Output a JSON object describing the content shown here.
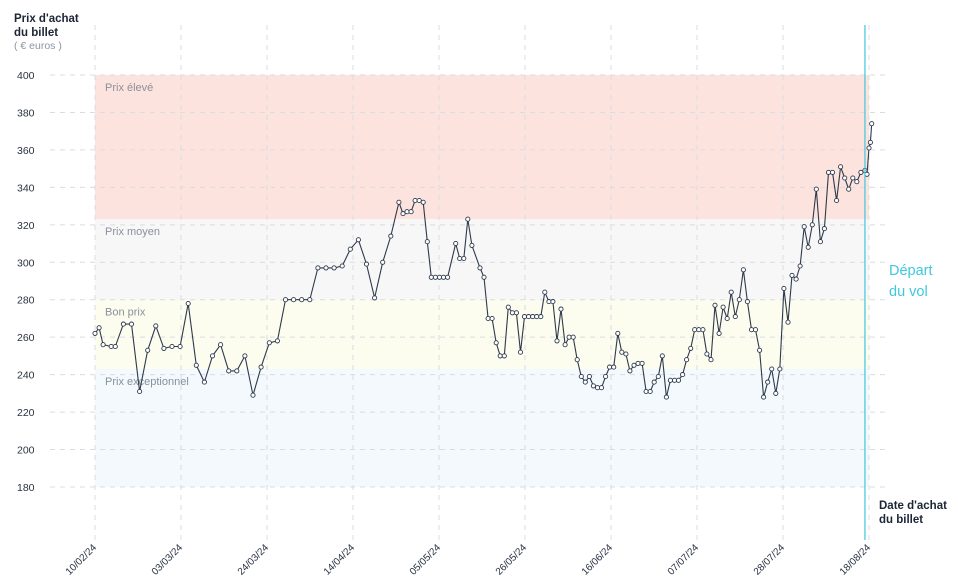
{
  "chart_data": {
    "type": "line",
    "title": "",
    "ylabel_line1": "Prix d'achat",
    "ylabel_line2": "du billet",
    "yunit": "( € euros )",
    "xlabel_line1": "Date d'achat",
    "xlabel_line2": "du billet",
    "departure_line1": "Départ",
    "departure_line2": "du vol",
    "y_ticks": [
      180,
      200,
      220,
      240,
      260,
      280,
      300,
      320,
      340,
      360,
      380,
      400
    ],
    "ylim": [
      170,
      405
    ],
    "x_ticks": [
      "10/02/24",
      "03/03/24",
      "24/03/24",
      "14/04/24",
      "05/05/24",
      "26/05/24",
      "16/06/24",
      "07/07/24",
      "28/07/24",
      "18/08/24"
    ],
    "x_start": "2024-02-10",
    "x_end": "2024-08-19",
    "departure_date": "2024-08-18",
    "zones": [
      {
        "label": "Prix élevé",
        "from": 323,
        "to": 400,
        "color": "#fde3dd"
      },
      {
        "label": "Prix moyen",
        "from": 280,
        "to": 323,
        "color": "#f7f7f8"
      },
      {
        "label": "Bon prix",
        "from": 243,
        "to": 280,
        "color": "#fcfcef"
      },
      {
        "label": "Prix exceptionnel",
        "from": 180,
        "to": 243,
        "color": "#f3f9fc"
      }
    ],
    "colors": {
      "line": "#2e3a4c",
      "departure": "#3fc7e0",
      "grid": "#d9dce1"
    },
    "grid": true,
    "series": [
      {
        "values": [
          [
            "2024-02-10",
            262
          ],
          [
            "2024-02-11",
            265
          ],
          [
            "2024-02-12",
            256
          ],
          [
            "2024-02-14",
            255
          ],
          [
            "2024-02-15",
            255
          ],
          [
            "2024-02-17",
            267
          ],
          [
            "2024-02-19",
            267
          ],
          [
            "2024-02-21",
            231
          ],
          [
            "2024-02-23",
            253
          ],
          [
            "2024-02-25",
            266
          ],
          [
            "2024-02-27",
            254
          ],
          [
            "2024-02-29",
            255
          ],
          [
            "2024-03-02",
            255
          ],
          [
            "2024-03-04",
            278
          ],
          [
            "2024-03-06",
            245
          ],
          [
            "2024-03-08",
            236
          ],
          [
            "2024-03-10",
            250
          ],
          [
            "2024-03-12",
            256
          ],
          [
            "2024-03-14",
            242
          ],
          [
            "2024-03-16",
            242
          ],
          [
            "2024-03-18",
            250
          ],
          [
            "2024-03-20",
            229
          ],
          [
            "2024-03-22",
            244
          ],
          [
            "2024-03-24",
            257
          ],
          [
            "2024-03-26",
            258
          ],
          [
            "2024-03-28",
            280
          ],
          [
            "2024-03-30",
            280
          ],
          [
            "2024-04-01",
            280
          ],
          [
            "2024-04-03",
            280
          ],
          [
            "2024-04-05",
            297
          ],
          [
            "2024-04-07",
            297
          ],
          [
            "2024-04-09",
            297
          ],
          [
            "2024-04-11",
            298
          ],
          [
            "2024-04-13",
            307
          ],
          [
            "2024-04-15",
            312
          ],
          [
            "2024-04-17",
            299
          ],
          [
            "2024-04-19",
            281
          ],
          [
            "2024-04-21",
            300
          ],
          [
            "2024-04-23",
            314
          ],
          [
            "2024-04-25",
            332
          ],
          [
            "2024-04-26",
            326
          ],
          [
            "2024-04-27",
            327
          ],
          [
            "2024-04-28",
            327
          ],
          [
            "2024-04-29",
            333
          ],
          [
            "2024-04-30",
            333
          ],
          [
            "2024-05-01",
            332
          ],
          [
            "2024-05-02",
            311
          ],
          [
            "2024-05-03",
            292
          ],
          [
            "2024-05-04",
            292
          ],
          [
            "2024-05-05",
            292
          ],
          [
            "2024-05-06",
            292
          ],
          [
            "2024-05-07",
            292
          ],
          [
            "2024-05-09",
            310
          ],
          [
            "2024-05-10",
            302
          ],
          [
            "2024-05-11",
            302
          ],
          [
            "2024-05-12",
            323
          ],
          [
            "2024-05-13",
            309
          ],
          [
            "2024-05-15",
            297
          ],
          [
            "2024-05-16",
            292
          ],
          [
            "2024-05-17",
            270
          ],
          [
            "2024-05-18",
            270
          ],
          [
            "2024-05-19",
            257
          ],
          [
            "2024-05-20",
            250
          ],
          [
            "2024-05-21",
            250
          ],
          [
            "2024-05-22",
            276
          ],
          [
            "2024-05-23",
            273
          ],
          [
            "2024-05-24",
            273
          ],
          [
            "2024-05-25",
            252
          ],
          [
            "2024-05-26",
            271
          ],
          [
            "2024-05-27",
            271
          ],
          [
            "2024-05-28",
            271
          ],
          [
            "2024-05-29",
            271
          ],
          [
            "2024-05-30",
            271
          ],
          [
            "2024-05-31",
            284
          ],
          [
            "2024-06-01",
            279
          ],
          [
            "2024-06-02",
            279
          ],
          [
            "2024-06-03",
            258
          ],
          [
            "2024-06-04",
            275
          ],
          [
            "2024-06-05",
            256
          ],
          [
            "2024-06-06",
            260
          ],
          [
            "2024-06-07",
            260
          ],
          [
            "2024-06-08",
            248
          ],
          [
            "2024-06-09",
            239
          ],
          [
            "2024-06-10",
            236
          ],
          [
            "2024-06-11",
            239
          ],
          [
            "2024-06-12",
            234
          ],
          [
            "2024-06-13",
            233
          ],
          [
            "2024-06-14",
            233
          ],
          [
            "2024-06-15",
            239
          ],
          [
            "2024-06-16",
            244
          ],
          [
            "2024-06-17",
            244
          ],
          [
            "2024-06-18",
            262
          ],
          [
            "2024-06-19",
            252
          ],
          [
            "2024-06-20",
            251
          ],
          [
            "2024-06-21",
            242
          ],
          [
            "2024-06-22",
            245
          ],
          [
            "2024-06-23",
            246
          ],
          [
            "2024-06-24",
            246
          ],
          [
            "2024-06-25",
            231
          ],
          [
            "2024-06-26",
            231
          ],
          [
            "2024-06-27",
            236
          ],
          [
            "2024-06-28",
            239
          ],
          [
            "2024-06-29",
            250
          ],
          [
            "2024-06-30",
            228
          ],
          [
            "2024-07-01",
            237
          ],
          [
            "2024-07-02",
            237
          ],
          [
            "2024-07-03",
            237
          ],
          [
            "2024-07-04",
            240
          ],
          [
            "2024-07-05",
            248
          ],
          [
            "2024-07-06",
            254
          ],
          [
            "2024-07-07",
            264
          ],
          [
            "2024-07-08",
            264
          ],
          [
            "2024-07-09",
            264
          ],
          [
            "2024-07-10",
            251
          ],
          [
            "2024-07-11",
            248
          ],
          [
            "2024-07-12",
            277
          ],
          [
            "2024-07-13",
            262
          ],
          [
            "2024-07-14",
            276
          ],
          [
            "2024-07-15",
            270
          ],
          [
            "2024-07-16",
            284
          ],
          [
            "2024-07-17",
            271
          ],
          [
            "2024-07-18",
            280
          ],
          [
            "2024-07-19",
            296
          ],
          [
            "2024-07-20",
            279
          ],
          [
            "2024-07-21",
            264
          ],
          [
            "2024-07-22",
            264
          ],
          [
            "2024-07-23",
            253
          ],
          [
            "2024-07-24",
            228
          ],
          [
            "2024-07-25",
            236
          ],
          [
            "2024-07-26",
            243
          ],
          [
            "2024-07-27",
            230
          ],
          [
            "2024-07-28",
            243
          ],
          [
            "2024-07-29",
            286
          ],
          [
            "2024-07-30",
            268
          ],
          [
            "2024-07-31",
            293
          ],
          [
            "2024-08-01",
            291
          ],
          [
            "2024-08-02",
            298
          ],
          [
            "2024-08-03",
            319
          ],
          [
            "2024-08-04",
            308
          ],
          [
            "2024-08-05",
            320
          ],
          [
            "2024-08-06",
            339
          ],
          [
            "2024-08-07",
            311
          ],
          [
            "2024-08-08",
            318
          ],
          [
            "2024-08-09",
            348
          ],
          [
            "2024-08-10",
            348
          ],
          [
            "2024-08-11",
            333
          ],
          [
            "2024-08-12",
            351
          ],
          [
            "2024-08-13",
            345
          ],
          [
            "2024-08-14",
            339
          ],
          [
            "2024-08-15",
            345
          ],
          [
            "2024-08-16",
            343
          ],
          [
            "2024-08-17",
            348
          ],
          [
            "2024-08-18",
            349
          ],
          [
            "2024-08-18T12:00",
            347
          ],
          [
            "2024-08-19",
            361
          ],
          [
            "2024-08-19T08:00",
            364
          ],
          [
            "2024-08-19T16:00",
            374
          ]
        ]
      }
    ]
  }
}
